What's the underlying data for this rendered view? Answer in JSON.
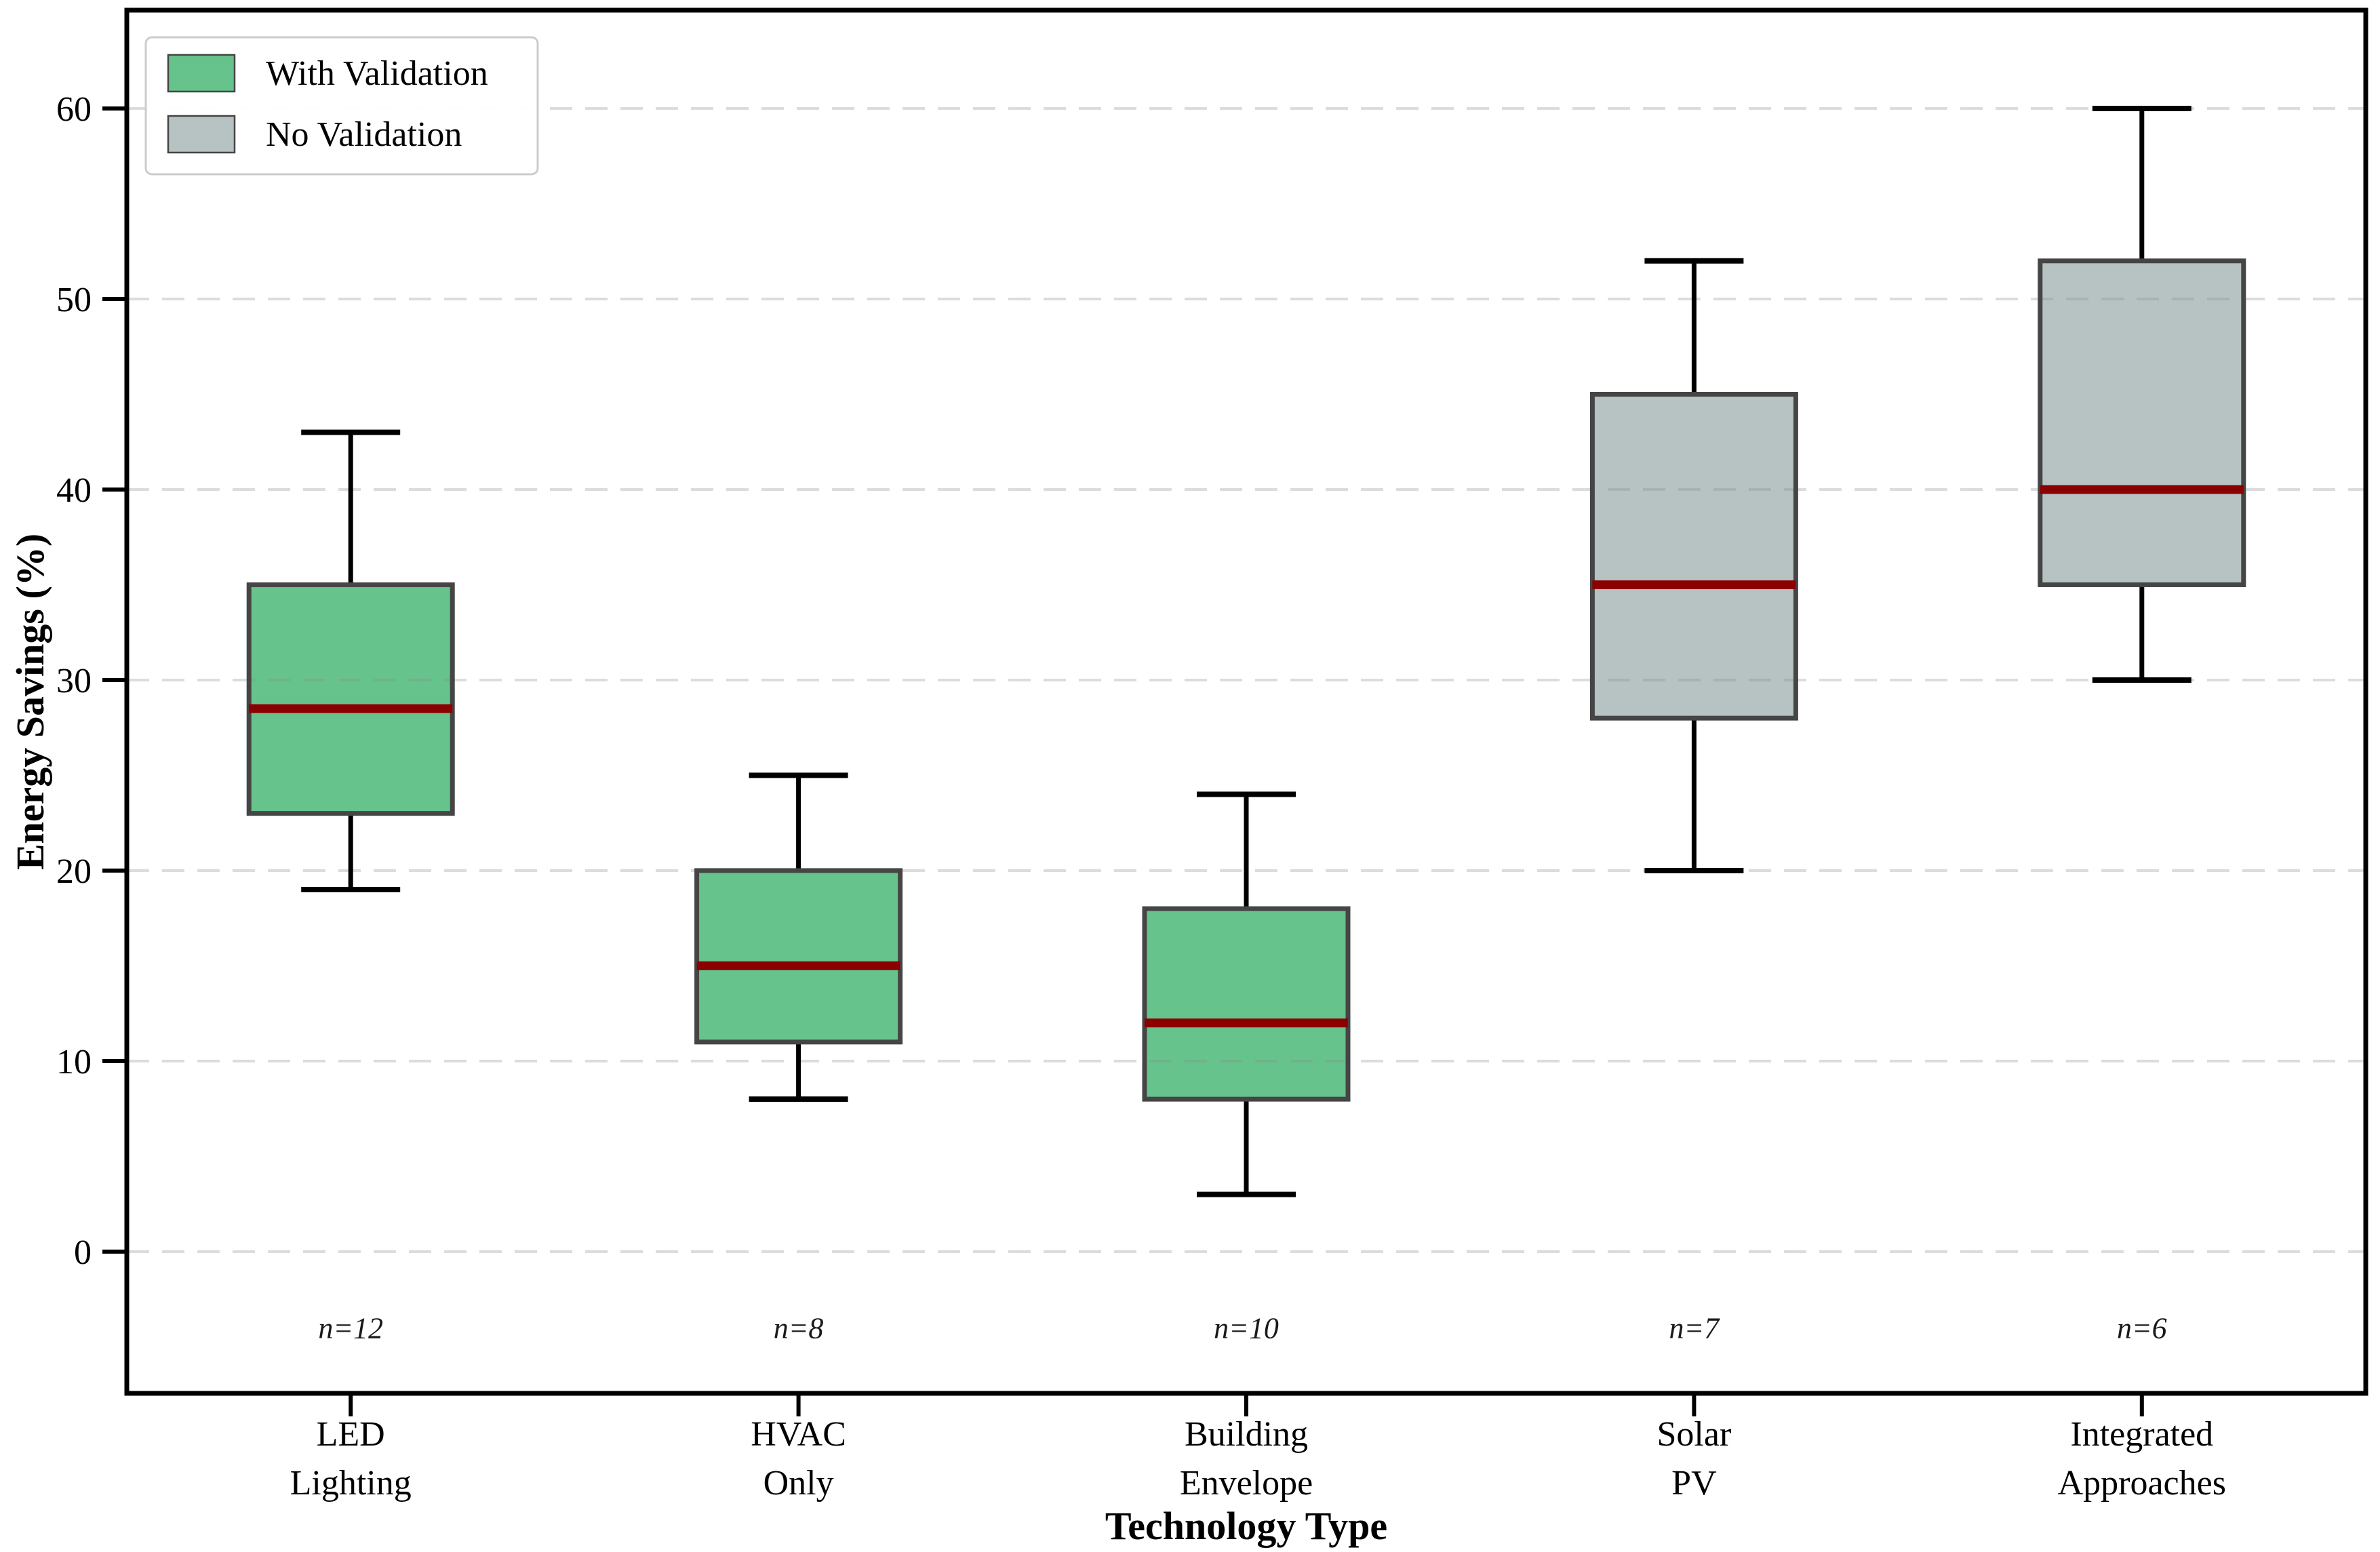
{
  "chart_data": {
    "type": "box",
    "title": "",
    "xlabel": "Technology Type",
    "ylabel": "Energy Savings (%)",
    "ylim": [
      -7.44,
      65.16
    ],
    "yticks": [
      0,
      10,
      20,
      30,
      40,
      50,
      60
    ],
    "grid": "horizontal-dashed",
    "legend": {
      "position": "upper-left",
      "items": [
        {
          "label": "With Validation",
          "color": "#66c38c"
        },
        {
          "label": "No Validation",
          "color": "#b7c2c2"
        }
      ]
    },
    "series": [
      {
        "category": "LED Lighting",
        "tick_lines": [
          "LED",
          "Lighting"
        ],
        "n_label": "n=12",
        "group": "With Validation",
        "color": "#66c38c",
        "whisker_low": 19,
        "q1": 23,
        "median": 28.5,
        "q3": 35,
        "whisker_high": 43
      },
      {
        "category": "HVAC Only",
        "tick_lines": [
          "HVAC",
          "Only"
        ],
        "n_label": "n=8",
        "group": "With Validation",
        "color": "#66c38c",
        "whisker_low": 8,
        "q1": 11,
        "median": 15,
        "q3": 20,
        "whisker_high": 25
      },
      {
        "category": "Building Envelope",
        "tick_lines": [
          "Building",
          "Envelope"
        ],
        "n_label": "n=10",
        "group": "With Validation",
        "color": "#66c38c",
        "whisker_low": 3,
        "q1": 8,
        "median": 12,
        "q3": 18,
        "whisker_high": 24
      },
      {
        "category": "Solar PV",
        "tick_lines": [
          "Solar",
          "PV"
        ],
        "n_label": "n=7",
        "group": "No Validation",
        "color": "#b7c2c2",
        "whisker_low": 20,
        "q1": 28,
        "median": 35,
        "q3": 45,
        "whisker_high": 52
      },
      {
        "category": "Integrated Approaches",
        "tick_lines": [
          "Integrated",
          "Approaches"
        ],
        "n_label": "n=6",
        "group": "No Validation",
        "color": "#b7c2c2",
        "whisker_low": 30,
        "q1": 35,
        "median": 40,
        "q3": 52,
        "whisker_high": 60
      }
    ],
    "n_label_y_value": -4,
    "colors": {
      "median": "#8b0000",
      "box_edge": "#454545",
      "whisker": "#000000",
      "grid": "#8c8c8c",
      "spine": "#000000",
      "background": "#ffffff"
    }
  }
}
